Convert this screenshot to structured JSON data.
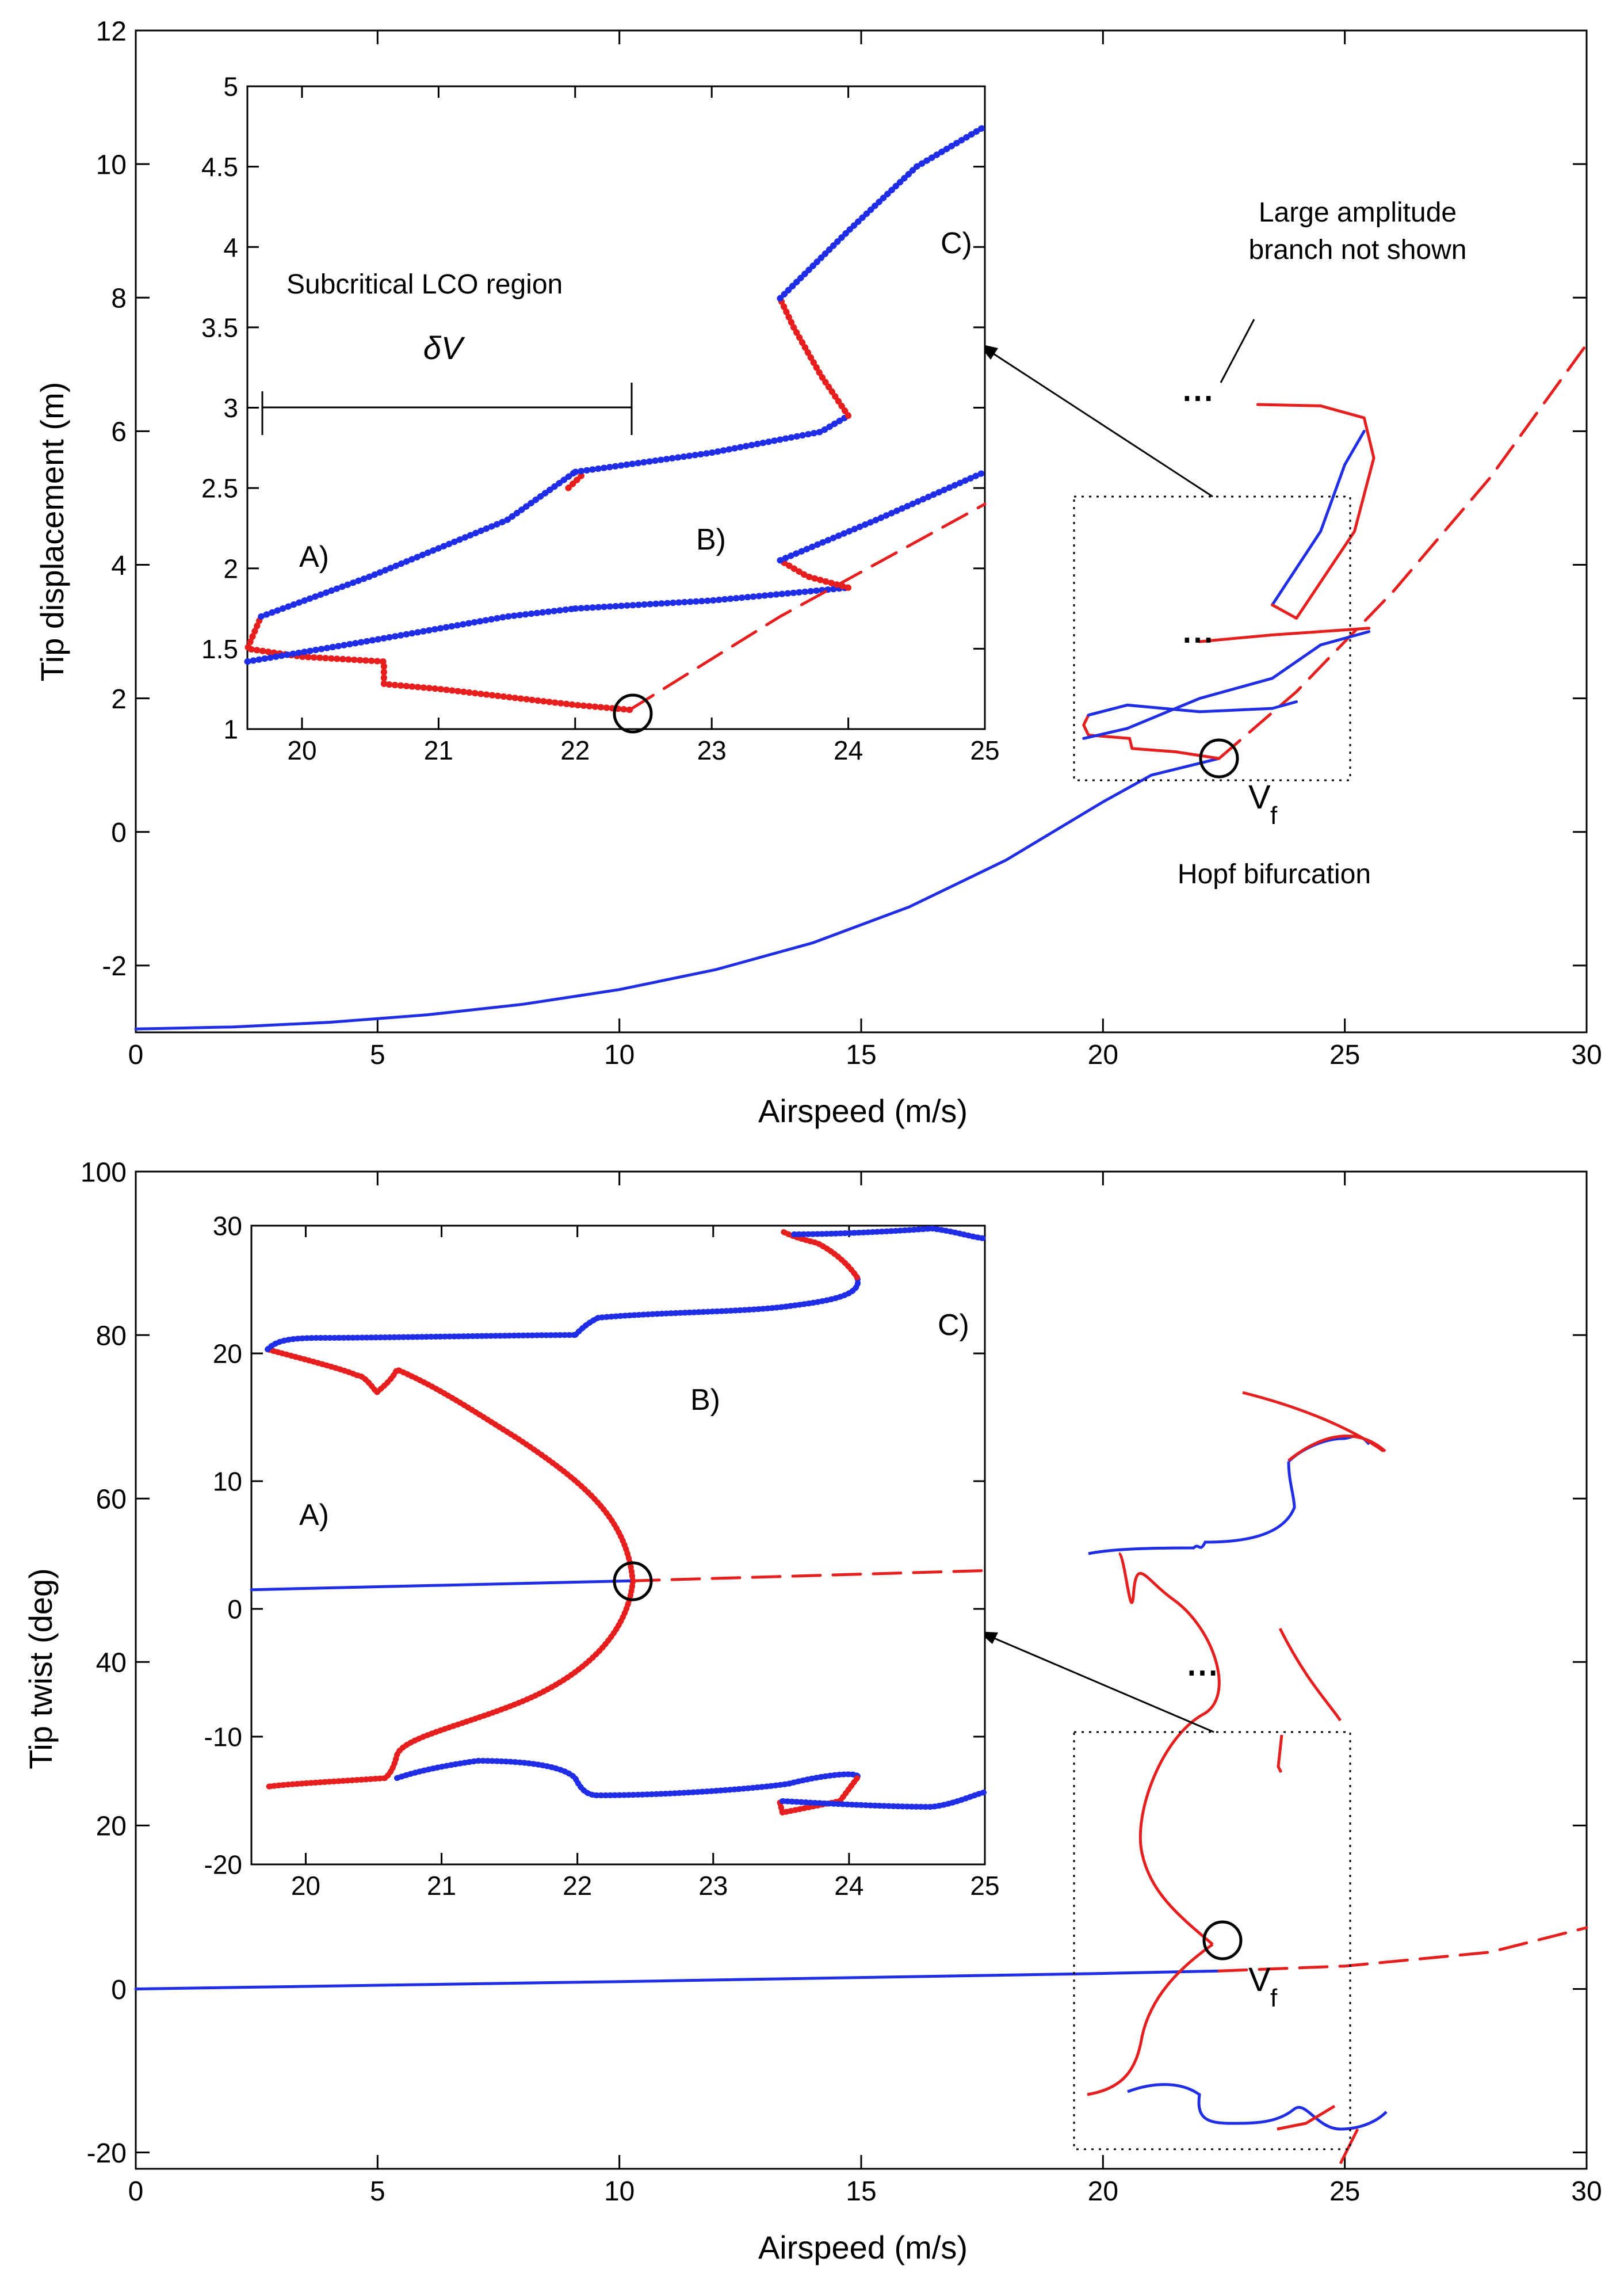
{
  "colors": {
    "stable": "#1f2ee6",
    "unstable": "#e61e1e",
    "axis": "#000000"
  },
  "chart_data": [
    {
      "type": "line",
      "panel": "top",
      "xlabel": "Airspeed (m/s)",
      "ylabel": "Tip displacement (m)",
      "xlim": [
        0,
        30
      ],
      "ylim": [
        -3,
        12
      ],
      "xticks": [
        "0",
        "5",
        "10",
        "15",
        "20",
        "25",
        "30"
      ],
      "yticks": [
        "-2",
        "0",
        "2",
        "4",
        "6",
        "8",
        "10",
        "12"
      ],
      "grid": false,
      "series": [
        {
          "style": "solid",
          "color": "stable",
          "x": [
            0,
            2,
            4,
            6,
            8,
            10,
            12,
            14,
            16,
            18,
            20,
            21,
            22.4
          ],
          "y": [
            -2.95,
            -2.92,
            -2.85,
            -2.74,
            -2.58,
            -2.36,
            -2.06,
            -1.66,
            -1.12,
            -0.42,
            0.45,
            0.85,
            1.1
          ]
        },
        {
          "style": "dashed",
          "color": "unstable",
          "x": [
            22.4,
            24,
            26,
            28,
            30
          ],
          "y": [
            1.1,
            2.1,
            3.6,
            5.3,
            7.3
          ]
        },
        {
          "style": "solid",
          "color": "unstable",
          "x": [
            22.4,
            21.5,
            20.6,
            20.55,
            19.7,
            19.6,
            19.7
          ],
          "y": [
            1.1,
            1.2,
            1.25,
            1.4,
            1.45,
            1.6,
            1.75
          ]
        },
        {
          "style": "solid",
          "color": "stable",
          "x": [
            19.7,
            20.5,
            22,
            23.5,
            24
          ],
          "y": [
            1.75,
            1.9,
            1.8,
            1.85,
            1.95
          ]
        },
        {
          "style": "solid",
          "color": "stable",
          "x": [
            19.6,
            20.5,
            22,
            23.5,
            24.5,
            25.5
          ],
          "y": [
            1.4,
            1.55,
            2.0,
            2.3,
            2.8,
            3.0
          ]
        },
        {
          "style": "solid",
          "color": "unstable",
          "x": [
            22,
            23.5,
            25.5
          ],
          "y": [
            2.85,
            2.95,
            3.05
          ]
        },
        {
          "style": "solid",
          "color": "stable",
          "x": [
            23.5,
            24.5,
            25,
            25.4
          ],
          "y": [
            3.4,
            4.5,
            5.5,
            6.0
          ]
        },
        {
          "style": "solid",
          "color": "unstable",
          "x": [
            23.5,
            24,
            25.2,
            25.6,
            25.4,
            24.5,
            23.2
          ],
          "y": [
            3.4,
            3.2,
            4.5,
            5.6,
            6.2,
            6.38,
            6.4
          ]
        }
      ],
      "annotations": [
        "Large amplitude",
        "branch not shown",
        "⋯",
        "⋯",
        "Hopf bifurcation",
        "V",
        "f"
      ],
      "inset": {
        "xlim": [
          19.6,
          25
        ],
        "ylim": [
          1,
          5
        ],
        "xticks": [
          "20",
          "21",
          "22",
          "23",
          "24",
          "25"
        ],
        "yticks": [
          "1",
          "1.5",
          "2",
          "2.5",
          "3",
          "3.5",
          "4",
          "4.5",
          "5"
        ],
        "labels": [
          "A)",
          "B)",
          "C)"
        ],
        "region_label": "Subcritical LCO region",
        "delta_label": "δV",
        "series": [
          {
            "style": "dotted",
            "color": "unstable",
            "x": [
              22.4,
              22,
              21.5,
              21,
              20.6,
              20.6,
              20,
              19.6,
              19.7
            ],
            "y": [
              1.12,
              1.15,
              1.2,
              1.25,
              1.28,
              1.42,
              1.45,
              1.5,
              1.7
            ]
          },
          {
            "style": "dotted",
            "color": "stable",
            "x": [
              19.7,
              20.5,
              21.5,
              22
            ],
            "y": [
              1.7,
              1.95,
              2.3,
              2.6
            ]
          },
          {
            "style": "dotted",
            "color": "unstable",
            "x": [
              21.95,
              22.05
            ],
            "y": [
              2.5,
              2.58
            ]
          },
          {
            "style": "dotted",
            "color": "stable",
            "x": [
              22,
              23,
              23.8,
              24
            ],
            "y": [
              2.6,
              2.72,
              2.85,
              2.95
            ]
          },
          {
            "style": "dotted",
            "color": "unstable",
            "x": [
              24,
              23.8,
              23.6,
              23.5
            ],
            "y": [
              2.95,
              3.2,
              3.5,
              3.68
            ]
          },
          {
            "style": "dotted",
            "color": "stable",
            "x": [
              23.5,
              24,
              24.5,
              25
            ],
            "y": [
              3.68,
              4.1,
              4.5,
              4.75
            ]
          },
          {
            "style": "dotted",
            "color": "stable",
            "x": [
              19.6,
              20.5,
              21.5,
              22
            ],
            "y": [
              1.42,
              1.55,
              1.7,
              1.75
            ]
          },
          {
            "style": "dotted",
            "color": "stable",
            "x": [
              22,
              23,
              24
            ],
            "y": [
              1.75,
              1.8,
              1.88
            ]
          },
          {
            "style": "dotted",
            "color": "unstable",
            "x": [
              24,
              23.7,
              23.5
            ],
            "y": [
              1.88,
              1.95,
              2.05
            ]
          },
          {
            "style": "dotted",
            "color": "stable",
            "x": [
              23.5,
              24.2,
              25
            ],
            "y": [
              2.05,
              2.3,
              2.6
            ]
          },
          {
            "style": "dashed",
            "color": "unstable",
            "x": [
              22.4,
              23.5,
              25
            ],
            "y": [
              1.12,
              1.7,
              2.4
            ]
          }
        ]
      }
    },
    {
      "type": "line",
      "panel": "bottom",
      "xlabel": "Airspeed (m/s)",
      "ylabel": "Tip twist (deg)",
      "xlim": [
        0,
        30
      ],
      "ylim": [
        -22,
        100
      ],
      "xticks": [
        "0",
        "5",
        "10",
        "15",
        "20",
        "25",
        "30"
      ],
      "yticks": [
        "-20",
        "0",
        "20",
        "40",
        "60",
        "80",
        "100"
      ],
      "grid": false,
      "series": [
        {
          "style": "solid",
          "color": "stable",
          "x": [
            0,
            10,
            20,
            22.4
          ],
          "y": [
            0,
            0.9,
            1.9,
            2.2
          ]
        },
        {
          "style": "dashed",
          "color": "unstable",
          "x": [
            22.4,
            25,
            28,
            30
          ],
          "y": [
            2.2,
            2.8,
            4.5,
            7.5
          ]
        }
      ],
      "annotations": [
        "⋯",
        "V",
        "f"
      ],
      "inset": {
        "xlim": [
          19.6,
          25
        ],
        "ylim": [
          -20,
          30
        ],
        "xticks": [
          "20",
          "21",
          "22",
          "23",
          "24",
          "25"
        ],
        "yticks": [
          "-20",
          "-10",
          "0",
          "10",
          "20",
          "30"
        ],
        "labels": [
          "A)",
          "B)",
          "C)"
        ],
        "series": [
          {
            "style": "solid",
            "color": "stable",
            "x": [
              19.6,
              22.4
            ],
            "y": [
              1.5,
              2.2
            ]
          },
          {
            "style": "dashed",
            "color": "unstable",
            "x": [
              22.4,
              25
            ],
            "y": [
              2.2,
              3
            ]
          },
          {
            "style": "dotted",
            "color": "unstable",
            "x": [
              22.4,
              22,
              21,
              20.6
            ],
            "y": [
              2.2,
              5,
              11,
              14.5
            ]
          },
          {
            "style": "dotted",
            "color": "unstable",
            "x": [
              22.4,
              22,
              21,
              20.6
            ],
            "y": [
              2.2,
              -5,
              -10,
              -13
            ]
          }
        ]
      }
    }
  ]
}
